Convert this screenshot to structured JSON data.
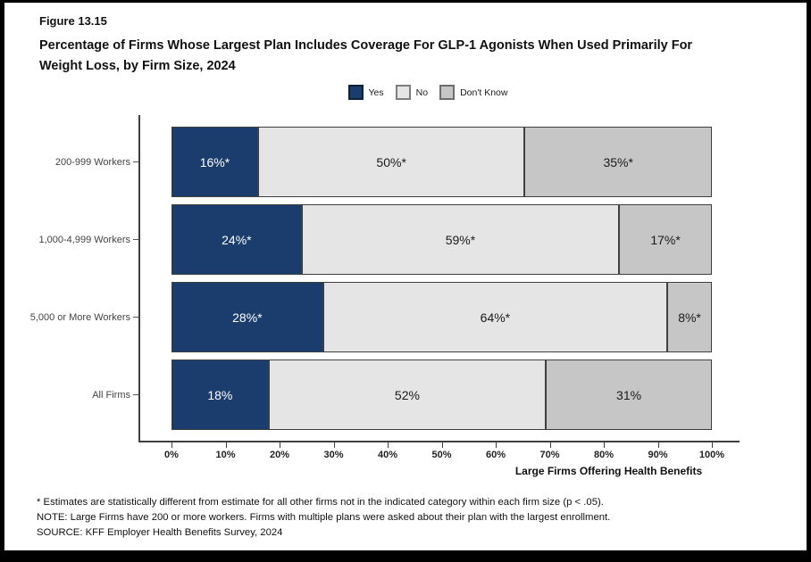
{
  "figure": {
    "number": "Figure 13.15",
    "title": "Percentage of Firms Whose Largest Plan Includes Coverage For GLP-1 Agonists When Used Primarily For Weight Loss, by Firm Size, 2024"
  },
  "legend": [
    {
      "label": "Yes",
      "color": "#1B3D6E"
    },
    {
      "label": "No",
      "color": "#E5E5E5"
    },
    {
      "label": "Don't Know",
      "color": "#C6C6C6"
    }
  ],
  "chart_data": {
    "type": "bar",
    "orientation": "horizontal",
    "stacked": true,
    "categories": [
      "200-999 Workers",
      "1,000-4,999 Workers",
      "5,000 or More Workers",
      "All Firms"
    ],
    "series": [
      {
        "name": "Yes",
        "color": "#1B3D6E",
        "label_color": "#ffffff",
        "values": [
          16,
          24,
          28,
          18
        ],
        "labels": [
          "16%*",
          "24%*",
          "28%*",
          "18%"
        ]
      },
      {
        "name": "No",
        "color": "#E5E5E5",
        "label_color": "#1a1a1a",
        "values": [
          50,
          59,
          64,
          52
        ],
        "labels": [
          "50%*",
          "59%*",
          "64%*",
          "52%"
        ]
      },
      {
        "name": "Don't Know",
        "color": "#C6C6C6",
        "label_color": "#1a1a1a",
        "values": [
          35,
          17,
          8,
          31
        ],
        "labels": [
          "35%*",
          "17%*",
          "8%*",
          "31%"
        ]
      }
    ],
    "xlabel": "Large Firms Offering Health Benefits",
    "x_ticks": [
      "0%",
      "10%",
      "20%",
      "30%",
      "40%",
      "50%",
      "60%",
      "70%",
      "80%",
      "90%",
      "100%"
    ],
    "xlim": [
      0,
      100
    ],
    "grid": false,
    "legend_position": "top"
  },
  "footnotes": [
    "* Estimates are statistically different from estimate for all other firms not in the indicated category within each firm size (p < .05).",
    "NOTE: Large Firms have 200 or more workers.  Firms with multiple plans were asked about their plan with the largest enrollment.",
    "SOURCE: KFF Employer Health Benefits Survey, 2024"
  ]
}
